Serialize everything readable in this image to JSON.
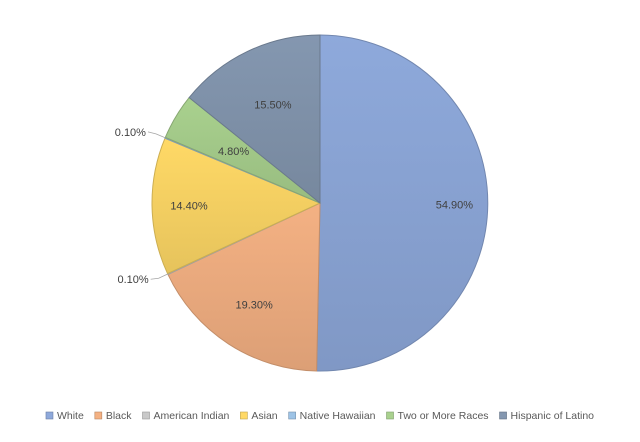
{
  "chart_data": {
    "type": "pie",
    "title": "",
    "legend_position": "bottom",
    "start": "12 o'clock",
    "direction": "clockwise",
    "categories": [
      "White",
      "Black",
      "American Indian",
      "Asian",
      "Native Hawaiian",
      "Two or More Races",
      "Hispanic of Latino"
    ],
    "values": [
      54.9,
      19.3,
      0.1,
      14.4,
      0.1,
      4.8,
      15.5
    ],
    "labels": [
      "54.90%",
      "19.30%",
      "0.10%",
      "14.40%",
      "0.10%",
      "4.80%",
      "15.50%"
    ],
    "colors": [
      "#8EA9DB",
      "#F4B183",
      "#C9C9C9",
      "#FFD966",
      "#9DC3E6",
      "#A9D18E",
      "#8497B0"
    ]
  }
}
